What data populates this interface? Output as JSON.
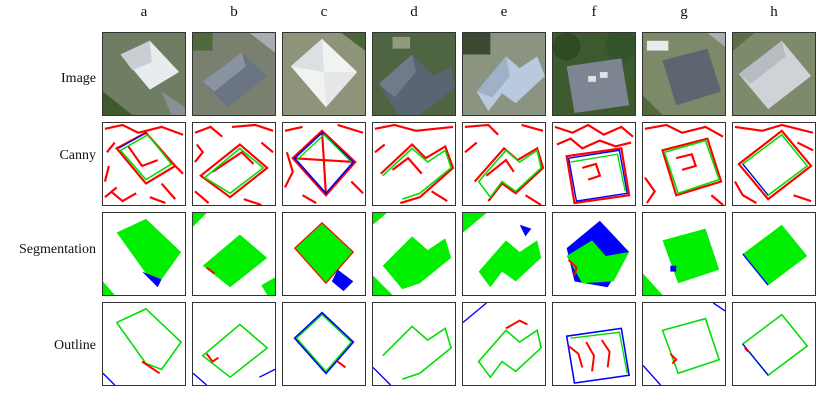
{
  "columns": [
    "a",
    "b",
    "c",
    "d",
    "e",
    "f",
    "g",
    "h"
  ],
  "rows": [
    "Image",
    "Canny",
    "Segmentation",
    "Outline"
  ],
  "colors": {
    "canny_edge": "#ff0000",
    "ground_truth": "#0000ff",
    "prediction": "#00dd00",
    "roof_light": "#d8dde2",
    "roof_dark": "#5a6370",
    "vegetation": "#4a6b35"
  }
}
